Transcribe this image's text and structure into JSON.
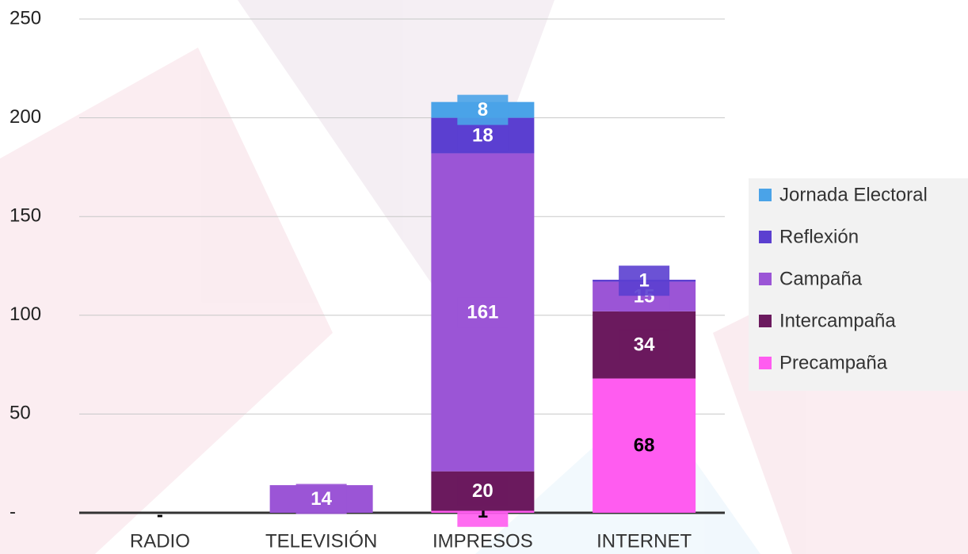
{
  "chart_data": {
    "type": "stacked_bar",
    "categories": [
      "RADIO",
      "TELEVISIÓN",
      "IMPRESOS",
      "INTERNET"
    ],
    "series": [
      {
        "name": "Precampaña",
        "color": "#ff5cf0",
        "values": [
          0,
          null,
          1,
          68
        ],
        "value_labels": [
          "-",
          null,
          null,
          null
        ]
      },
      {
        "name": "Intercampaña",
        "color": "#6b1a5e",
        "values": [
          null,
          null,
          20,
          34
        ]
      },
      {
        "name": "Campaña",
        "color": "#9b55d6",
        "values": [
          null,
          14,
          161,
          15
        ]
      },
      {
        "name": "Reflexión",
        "color": "#5b3fd0",
        "values": [
          null,
          null,
          18,
          1
        ]
      },
      {
        "name": "Jornada Electoral",
        "color": "#4aa3e8",
        "values": [
          null,
          null,
          8,
          null
        ]
      }
    ],
    "ylim": [
      0,
      250
    ],
    "yticks": [
      {
        "value": 0,
        "label": "-"
      },
      50,
      100,
      150,
      200,
      250
    ],
    "grid": true,
    "legend": "right"
  }
}
